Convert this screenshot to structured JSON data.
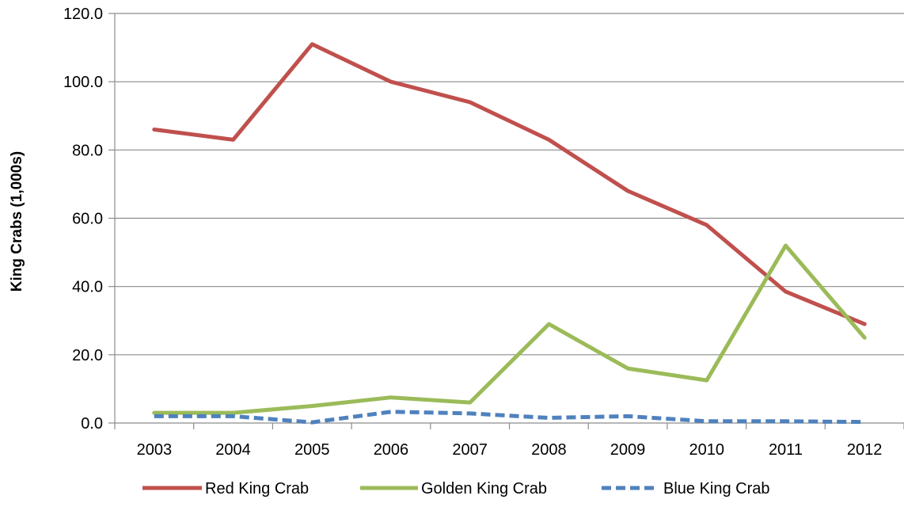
{
  "chart_data": {
    "type": "line",
    "title": "",
    "xlabel": "",
    "ylabel": "King Crabs (1,000s)",
    "categories": [
      "2003",
      "2004",
      "2005",
      "2006",
      "2007",
      "2008",
      "2009",
      "2010",
      "2011",
      "2012"
    ],
    "ylim": [
      0,
      120
    ],
    "yticks": [
      "0.0",
      "20.0",
      "40.0",
      "60.0",
      "80.0",
      "100.0",
      "120.0"
    ],
    "grid": true,
    "legend_position": "bottom",
    "series": [
      {
        "name": "Red King Crab",
        "color": "#c0504d",
        "style": "solid",
        "values": [
          86.0,
          83.0,
          111.0,
          100.0,
          94.0,
          83.0,
          68.0,
          58.0,
          38.5,
          29.0
        ]
      },
      {
        "name": "Golden King Crab",
        "color": "#9bbb59",
        "style": "solid",
        "values": [
          3.0,
          3.0,
          5.0,
          7.5,
          6.0,
          29.0,
          16.0,
          12.5,
          52.0,
          25.0
        ]
      },
      {
        "name": "Blue King Crab",
        "color": "#4f81bd",
        "style": "dashed",
        "values": [
          2.0,
          2.0,
          0.2,
          3.3,
          2.8,
          1.5,
          2.0,
          0.5,
          0.5,
          0.3
        ]
      }
    ]
  }
}
